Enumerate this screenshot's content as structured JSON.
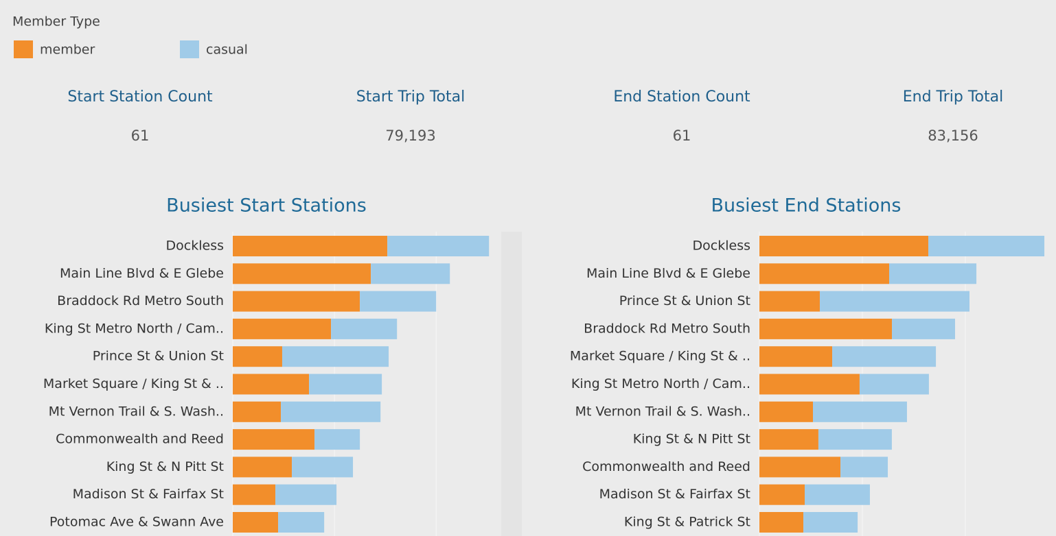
{
  "legend_title": "Member Type",
  "kpis": [
    {
      "label": "Start Station Count",
      "value": "61"
    },
    {
      "label": "Start Trip Total",
      "value": "79,193"
    },
    {
      "label": "End Station Count",
      "value": "61"
    },
    {
      "label": "End Trip Total",
      "value": "83,156"
    }
  ],
  "chart_data": [
    {
      "type": "stacked_barh",
      "title": "Busiest Start Stations",
      "categories": [
        "Dockless",
        "Main Line Blvd & E Glebe",
        "Braddock Rd Metro South",
        "King St Metro North / Cam..",
        "Prince St & Union St",
        "Market Square / King St & ..",
        "Mt Vernon Trail & S. Wash..",
        "Commonwealth and Reed",
        "King St & N Pitt St",
        "Madison St & Fairfax St",
        "Potomac Ave & Swann Ave"
      ],
      "series": [
        {
          "name": "member",
          "color": "#f28e2b",
          "values": [
            1520,
            1358,
            1250,
            966,
            486,
            750,
            473,
            804,
            581,
            419,
            446
          ]
        },
        {
          "name": "casual",
          "color": "#a0cbe8",
          "values": [
            1000,
            777,
            750,
            649,
            1047,
            716,
            980,
            446,
            601,
            601,
            453
          ]
        }
      ],
      "xlim": [
        0,
        2640
      ],
      "xticks": [
        0,
        1000,
        2000
      ],
      "grid": true
    },
    {
      "type": "stacked_barh",
      "title": "Busiest End Stations",
      "categories": [
        "Dockless",
        "Main Line Blvd & E Glebe",
        "Prince St & Union St",
        "Braddock Rd Metro South",
        "Market Square / King St & ..",
        "King St Metro North / Cam..",
        "Mt Vernon Trail & S. Wash..",
        "King St & N Pitt St",
        "Commonwealth and Reed",
        "Madison St & Fairfax St",
        "King St & Patrick St"
      ],
      "series": [
        {
          "name": "member",
          "color": "#f28e2b",
          "values": [
            1640,
            1260,
            587,
            1287,
            707,
            973,
            520,
            573,
            787,
            440,
            427
          ]
        },
        {
          "name": "casual",
          "color": "#a0cbe8",
          "values": [
            1127,
            847,
            1453,
            613,
            1007,
            673,
            913,
            713,
            460,
            633,
            527
          ]
        }
      ],
      "xlim": [
        0,
        2880
      ],
      "xticks": [
        0,
        1000,
        2000
      ],
      "grid": true
    }
  ]
}
